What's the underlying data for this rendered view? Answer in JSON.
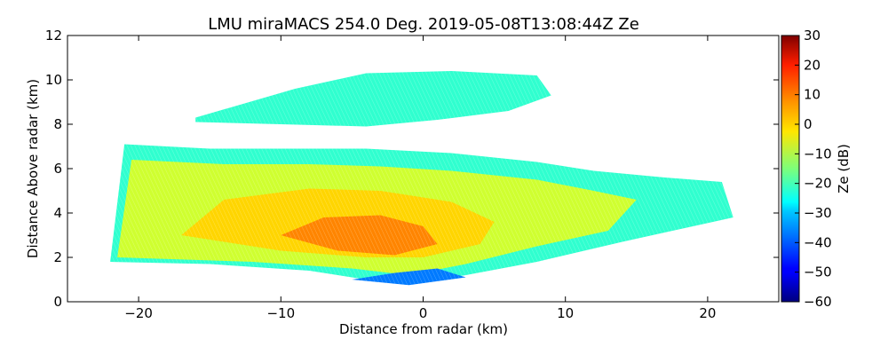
{
  "chart_data": {
    "type": "heatmap",
    "title": "LMU miraMACS 254.0 Deg. 2019-05-08T13:08:44Z  Ze",
    "xlabel": "Distance from radar (km)",
    "ylabel": "Distance Above radar  (km)",
    "xlim": [
      -25,
      25
    ],
    "ylim": [
      0,
      12
    ],
    "xticks": [
      -20,
      -10,
      0,
      10,
      20
    ],
    "xtick_labels": [
      "−20",
      "−10",
      "0",
      "10",
      "20"
    ],
    "yticks": [
      0,
      2,
      4,
      6,
      8,
      10,
      12
    ],
    "ytick_labels": [
      "0",
      "2",
      "4",
      "6",
      "8",
      "10",
      "12"
    ],
    "colorbar": {
      "label": "Ze (dB)",
      "colormap": "jet",
      "range": [
        -60,
        30
      ],
      "ticks": [
        30,
        20,
        10,
        0,
        -10,
        -20,
        -30,
        -40,
        -50,
        -60
      ],
      "tick_labels": [
        "30",
        "20",
        "10",
        "0",
        "−10",
        "−20",
        "−30",
        "−40",
        "−50",
        "−60"
      ]
    },
    "echo_regions": [
      {
        "name": "upper-cloud-layer",
        "ze_dB": -22,
        "polygon_km": [
          [
            -16,
            8.3
          ],
          [
            -9,
            9.6
          ],
          [
            -4,
            10.3
          ],
          [
            2,
            10.4
          ],
          [
            8,
            10.2
          ],
          [
            9,
            9.3
          ],
          [
            6,
            8.6
          ],
          [
            1,
            8.2
          ],
          [
            -4,
            7.9
          ],
          [
            -10,
            8.0
          ],
          [
            -16,
            8.1
          ]
        ]
      },
      {
        "name": "main-layer-edge",
        "ze_dB": -22,
        "polygon_km": [
          [
            -22,
            1.8
          ],
          [
            -21,
            7.1
          ],
          [
            -15,
            6.9
          ],
          [
            -9,
            6.9
          ],
          [
            -4,
            6.9
          ],
          [
            2,
            6.7
          ],
          [
            8,
            6.3
          ],
          [
            12,
            5.9
          ],
          [
            17,
            5.6
          ],
          [
            21,
            5.4
          ],
          [
            21.8,
            3.8
          ],
          [
            14,
            2.7
          ],
          [
            8,
            1.8
          ],
          [
            3,
            1.2
          ],
          [
            -1,
            0.8
          ],
          [
            -4,
            1.0
          ],
          [
            -8,
            1.4
          ],
          [
            -15,
            1.7
          ]
        ]
      },
      {
        "name": "main-layer-body",
        "ze_dB": -8,
        "polygon_km": [
          [
            -21.5,
            2.0
          ],
          [
            -20.5,
            6.4
          ],
          [
            -14,
            6.2
          ],
          [
            -8,
            6.2
          ],
          [
            -3,
            6.1
          ],
          [
            2,
            5.9
          ],
          [
            8,
            5.5
          ],
          [
            12,
            5.0
          ],
          [
            15,
            4.6
          ],
          [
            13,
            3.2
          ],
          [
            8,
            2.5
          ],
          [
            3,
            1.7
          ],
          [
            -1,
            1.2
          ],
          [
            -5,
            1.5
          ],
          [
            -12,
            1.8
          ]
        ]
      },
      {
        "name": "enhanced-core",
        "ze_dB": 0,
        "polygon_km": [
          [
            -17,
            3.0
          ],
          [
            -14,
            4.6
          ],
          [
            -8,
            5.1
          ],
          [
            -3,
            5.0
          ],
          [
            2,
            4.5
          ],
          [
            5,
            3.6
          ],
          [
            4,
            2.6
          ],
          [
            0,
            2.0
          ],
          [
            -4,
            2.0
          ],
          [
            -10,
            2.3
          ]
        ]
      },
      {
        "name": "peak-core",
        "ze_dB": 7,
        "polygon_km": [
          [
            -10,
            3.0
          ],
          [
            -7,
            3.8
          ],
          [
            -3,
            3.9
          ],
          [
            0,
            3.4
          ],
          [
            1,
            2.6
          ],
          [
            -2,
            2.1
          ],
          [
            -6,
            2.3
          ]
        ]
      },
      {
        "name": "low-reflectivity-base",
        "ze_dB": -38,
        "polygon_km": [
          [
            -5,
            1.0
          ],
          [
            -1,
            0.75
          ],
          [
            3,
            1.1
          ],
          [
            1,
            1.5
          ],
          [
            -2,
            1.3
          ]
        ]
      }
    ]
  }
}
